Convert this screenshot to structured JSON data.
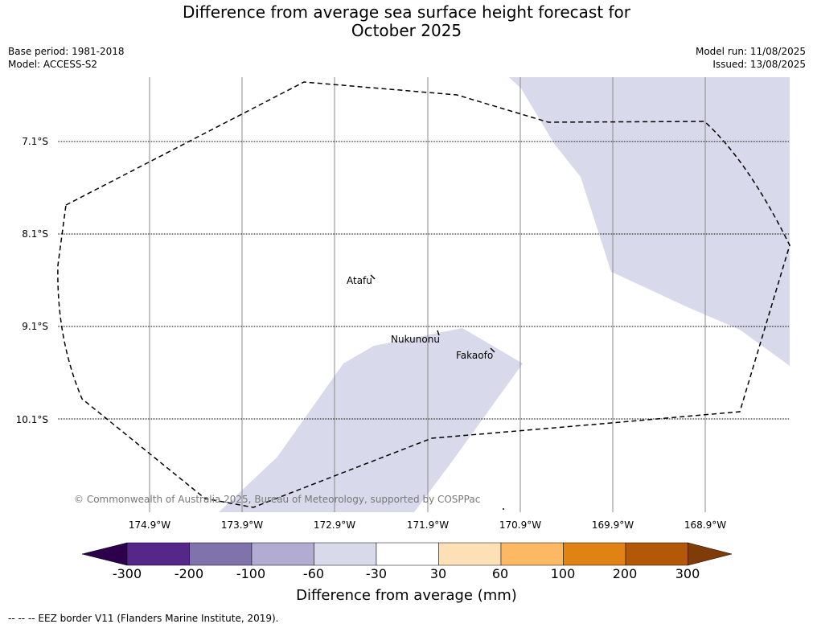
{
  "title_line1": "Difference from average sea surface height forecast for",
  "title_line2": "October 2025",
  "base_period": "Base period: 1981-2018",
  "model": "Model: ACCESS-S2",
  "model_run": "Model run: 11/08/2025",
  "issued": "Issued: 13/08/2025",
  "lat_labels": [
    "7.1°S",
    "8.1°S",
    "9.1°S",
    "10.1°S"
  ],
  "lon_labels": [
    "174.9°W",
    "173.9°W",
    "172.9°W",
    "171.9°W",
    "170.9°W",
    "169.9°W",
    "168.9°W"
  ],
  "places": {
    "atafu": "Atafu",
    "nukunonu": "Nukunonu",
    "fakaofo": "Fakaofo"
  },
  "copyright": "© Commonwealth of Australia 2025, Bureau of Meteorology, supported by COSPPac",
  "colorbar": {
    "title": "Difference from average (mm)",
    "ticks": [
      "-300",
      "-200",
      "-100",
      "-60",
      "-30",
      "30",
      "60",
      "100",
      "200",
      "300"
    ],
    "colors": [
      "#2d004b",
      "#542788",
      "#8073ac",
      "#b2abd2",
      "#d8daeb",
      "#ffffff",
      "#fee0b6",
      "#fdb863",
      "#e08214",
      "#b35806",
      "#7f3b08"
    ]
  },
  "eez_legend": "-- -- -- EEZ border V11 (Flanders Marine Institute, 2019)."
}
